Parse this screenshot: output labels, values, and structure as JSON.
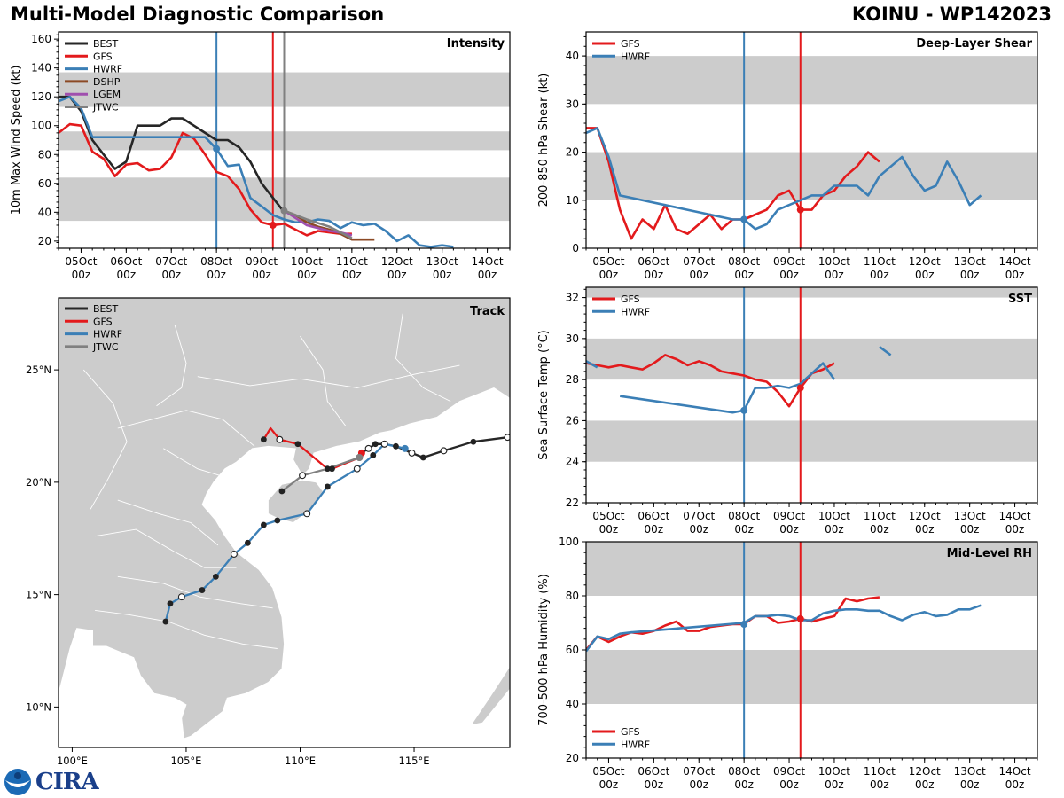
{
  "header": {
    "title": "Multi-Model Diagnostic Comparison",
    "storm": "KOINU - WP142023"
  },
  "colors": {
    "BEST": "#262626",
    "GFS": "#e31a1c",
    "HWRF": "#3b7fb6",
    "DSHP": "#8c4a25",
    "LGEM": "#a04fae",
    "JTWC": "#808080",
    "band": "#cccccc",
    "land": "#cccccc"
  },
  "time_axis": {
    "ticks": [
      {
        "day": 5,
        "label": "05Oct",
        "sub": "00z"
      },
      {
        "day": 6,
        "label": "06Oct",
        "sub": "00z"
      },
      {
        "day": 7,
        "label": "07Oct",
        "sub": "00z"
      },
      {
        "day": 8,
        "label": "08Oct",
        "sub": "00z"
      },
      {
        "day": 9,
        "label": "09Oct",
        "sub": "00z"
      },
      {
        "day": 10,
        "label": "10Oct",
        "sub": "00z"
      },
      {
        "day": 11,
        "label": "11Oct",
        "sub": "00z"
      },
      {
        "day": 12,
        "label": "12Oct",
        "sub": "00z"
      },
      {
        "day": 13,
        "label": "13Oct",
        "sub": "00z"
      },
      {
        "day": 14,
        "label": "14Oct",
        "sub": "00z"
      }
    ],
    "xlim": [
      4.5,
      14.5
    ],
    "vlines": [
      {
        "day": 8.0,
        "model": "HWRF"
      },
      {
        "day": 9.25,
        "model": "GFS"
      },
      {
        "day": 9.5,
        "model": "JTWC",
        "panels": [
          "intensity"
        ]
      }
    ]
  },
  "chart_data": [
    {
      "id": "intensity",
      "type": "line",
      "title": "Intensity",
      "ylabel": "10m Max Wind Speed (kt)",
      "ylim": [
        15,
        165
      ],
      "yticks": [
        20,
        40,
        60,
        80,
        100,
        120,
        140,
        160
      ],
      "bands": [
        [
          34,
          64
        ],
        [
          83,
          96
        ],
        [
          113,
          137
        ]
      ],
      "legend": [
        "BEST",
        "GFS",
        "HWRF",
        "DSHP",
        "LGEM",
        "JTWC"
      ],
      "legend_position": "top-left",
      "series": [
        {
          "name": "BEST",
          "x": [
            4.5,
            4.75,
            5.0,
            5.25,
            5.5,
            5.75,
            6.0,
            6.25,
            6.5,
            6.75,
            7.0,
            7.25,
            7.5,
            7.75,
            8.0,
            8.25,
            8.5,
            8.75,
            9.0,
            9.25,
            9.5
          ],
          "y": [
            120,
            120,
            110,
            90,
            80,
            70,
            75,
            100,
            100,
            100,
            105,
            105,
            100,
            95,
            90,
            90,
            85,
            75,
            60,
            50,
            40
          ]
        },
        {
          "name": "GFS",
          "x": [
            4.5,
            4.75,
            5.0,
            5.25,
            5.5,
            5.75,
            6.0,
            6.25,
            6.5,
            6.75,
            7.0,
            7.25,
            7.5,
            7.75,
            8.0,
            8.25,
            8.5,
            8.75,
            9.0,
            9.25,
            9.5,
            9.75,
            10.0,
            10.25,
            10.5,
            10.75,
            11.0
          ],
          "y": [
            95,
            101,
            100,
            82,
            77,
            65,
            73,
            74,
            69,
            70,
            78,
            95,
            91,
            80,
            68,
            65,
            56,
            42,
            33,
            31,
            32,
            28,
            24,
            27,
            26,
            25,
            25
          ]
        },
        {
          "name": "HWRF",
          "x": [
            4.5,
            4.75,
            5.0,
            5.25,
            5.5,
            6.0,
            6.5,
            7.0,
            7.5,
            7.75,
            8.0,
            8.25,
            8.5,
            8.75,
            9.0,
            9.25,
            9.5,
            9.75,
            10.0,
            10.25,
            10.5,
            10.75,
            11.0,
            11.25,
            11.5,
            11.75,
            12.0,
            12.25,
            12.5,
            12.75,
            13.0,
            13.25
          ],
          "y": [
            117,
            120,
            112,
            92,
            92,
            92,
            92,
            92,
            92,
            92,
            84,
            72,
            73,
            50,
            44,
            38,
            35,
            33,
            33,
            35,
            34,
            29,
            33,
            31,
            32,
            27,
            20,
            24,
            17,
            16,
            17,
            16
          ]
        },
        {
          "name": "DSHP",
          "x": [
            9.5,
            9.75,
            10.0,
            10.25,
            10.5,
            10.75,
            11.0,
            11.25,
            11.5
          ],
          "y": [
            41,
            38,
            33,
            30,
            28,
            25,
            21,
            21,
            21
          ]
        },
        {
          "name": "LGEM",
          "x": [
            9.5,
            9.75,
            10.0,
            10.25,
            10.5,
            10.75,
            11.0
          ],
          "y": [
            41,
            36,
            31,
            29,
            27,
            26,
            24
          ]
        },
        {
          "name": "JTWC",
          "x": [
            9.5,
            10.0,
            10.5,
            11.0
          ],
          "y": [
            41,
            35,
            30,
            22
          ]
        }
      ],
      "markers": [
        {
          "model": "HWRF",
          "x": 8.0,
          "y": 84
        },
        {
          "model": "GFS",
          "x": 9.25,
          "y": 31
        },
        {
          "model": "JTWC",
          "x": 9.5,
          "y": 41
        }
      ]
    },
    {
      "id": "shear",
      "type": "line",
      "title": "Deep-Layer Shear",
      "ylabel": "200-850 hPa Shear (kt)",
      "ylim": [
        0,
        45
      ],
      "yticks": [
        0,
        10,
        20,
        30,
        40
      ],
      "bands": [
        [
          10,
          20
        ],
        [
          30,
          40
        ]
      ],
      "legend": [
        "GFS",
        "HWRF"
      ],
      "legend_position": "top-left",
      "series": [
        {
          "name": "GFS",
          "x": [
            4.5,
            4.75,
            5.0,
            5.25,
            5.5,
            5.75,
            6.0,
            6.25,
            6.5,
            6.75,
            7.0,
            7.25,
            7.5,
            7.75,
            8.0,
            8.25,
            8.5,
            8.75,
            9.0,
            9.25,
            9.5,
            9.75,
            10.0,
            10.25,
            10.5,
            10.75,
            11.0
          ],
          "y": [
            25,
            25,
            18,
            8,
            2,
            6,
            4,
            9,
            4,
            3,
            5,
            7,
            4,
            6,
            6,
            7,
            8,
            11,
            12,
            8,
            8,
            11,
            12,
            15,
            17,
            20,
            18
          ]
        },
        {
          "name": "HWRF",
          "x": [
            4.5,
            4.75,
            5.0,
            5.25,
            7.75,
            8.0,
            8.25,
            8.5,
            8.75,
            9.0,
            9.25,
            9.5,
            9.75,
            10.0,
            10.25,
            10.5,
            10.75,
            11.0,
            11.25,
            11.5,
            11.75,
            12.0,
            12.25,
            12.5,
            12.75,
            13.0,
            13.25
          ],
          "y": [
            24,
            25,
            19,
            11,
            6,
            6,
            4,
            5,
            8,
            9,
            10,
            11,
            11,
            13,
            13,
            13,
            11,
            15,
            17,
            19,
            15,
            12,
            13,
            18,
            14,
            9,
            11
          ]
        }
      ],
      "markers": [
        {
          "model": "HWRF",
          "x": 8.0,
          "y": 6
        },
        {
          "model": "GFS",
          "x": 9.25,
          "y": 8
        }
      ]
    },
    {
      "id": "sst",
      "type": "line",
      "title": "SST",
      "ylabel": "Sea Surface Temp (°C)",
      "ylim": [
        22,
        32.5
      ],
      "yticks": [
        22,
        24,
        26,
        28,
        30,
        32
      ],
      "bands": [
        [
          24,
          26
        ],
        [
          28,
          30
        ],
        [
          32,
          33
        ]
      ],
      "legend": [
        "GFS",
        "HWRF"
      ],
      "legend_position": "top-left",
      "series": [
        {
          "name": "GFS",
          "x": [
            4.5,
            4.75,
            5.0,
            5.25,
            5.5,
            5.75,
            6.0,
            6.25,
            6.5,
            6.75,
            7.0,
            7.25,
            7.5,
            7.75,
            8.0,
            8.25,
            8.5,
            8.75,
            9.0,
            9.25,
            9.5,
            9.75,
            10.0
          ],
          "y": [
            28.8,
            28.7,
            28.6,
            28.7,
            28.6,
            28.5,
            28.8,
            29.2,
            29.0,
            28.7,
            28.9,
            28.7,
            28.4,
            28.3,
            28.2,
            28.0,
            27.9,
            27.4,
            26.7,
            27.6,
            28.3,
            28.5,
            28.8
          ]
        },
        {
          "name": "HWRF",
          "segments": [
            {
              "x": [
                4.5,
                4.75
              ],
              "y": [
                28.9,
                28.6
              ]
            },
            {
              "x": [
                5.25,
                7.75,
                8.0,
                8.25,
                8.5,
                8.75,
                9.0,
                9.25,
                9.5,
                9.75,
                10.0
              ],
              "y": [
                27.2,
                26.4,
                26.5,
                27.6,
                27.6,
                27.7,
                27.6,
                27.8,
                28.3,
                28.8,
                28.0
              ]
            },
            {
              "x": [
                11.0,
                11.25
              ],
              "y": [
                29.6,
                29.2
              ]
            }
          ]
        }
      ],
      "markers": [
        {
          "model": "HWRF",
          "x": 8.0,
          "y": 26.5
        },
        {
          "model": "GFS",
          "x": 9.25,
          "y": 27.6
        }
      ]
    },
    {
      "id": "rh",
      "type": "line",
      "title": "Mid-Level RH",
      "ylabel": "700-500 hPa Humidity (%)",
      "ylim": [
        20,
        100
      ],
      "yticks": [
        20,
        40,
        60,
        80,
        100
      ],
      "bands": [
        [
          40,
          60
        ],
        [
          80,
          100
        ]
      ],
      "legend": [
        "GFS",
        "HWRF"
      ],
      "legend_position": "bottom-left",
      "series": [
        {
          "name": "GFS",
          "x": [
            4.5,
            4.75,
            5.0,
            5.25,
            5.5,
            5.75,
            6.0,
            6.25,
            6.5,
            6.75,
            7.0,
            7.25,
            7.5,
            7.75,
            8.0,
            8.25,
            8.5,
            8.75,
            9.0,
            9.25,
            9.5,
            9.75,
            10.0,
            10.25,
            10.5,
            10.75,
            11.0
          ],
          "y": [
            60,
            65,
            63,
            65,
            66.5,
            66,
            67,
            69,
            70.5,
            67,
            67,
            68.5,
            69,
            69.5,
            69.5,
            72.5,
            72.5,
            70,
            70.5,
            71.5,
            70.5,
            71.5,
            72.5,
            79,
            78,
            79,
            79.5
          ]
        },
        {
          "name": "HWRF",
          "x": [
            4.5,
            4.75,
            5.0,
            5.25,
            5.5,
            8.0,
            8.25,
            8.5,
            8.75,
            9.0,
            9.25,
            9.5,
            9.75,
            10.0,
            10.25,
            10.5,
            10.75,
            11.0,
            11.25,
            11.5,
            11.75,
            12.0,
            12.25,
            12.5,
            12.75,
            13.0,
            13.25
          ],
          "y": [
            59.5,
            65,
            64,
            66,
            66.5,
            70,
            72.5,
            72.5,
            73,
            72.5,
            71,
            71,
            73.5,
            74.5,
            75,
            75,
            74.5,
            74.5,
            72.5,
            71,
            73,
            74,
            72.5,
            73,
            75,
            75,
            76.5
          ]
        }
      ],
      "markers": [
        {
          "model": "HWRF",
          "x": 8.0,
          "y": 69.5
        },
        {
          "model": "GFS",
          "x": 9.25,
          "y": 71.5
        }
      ]
    },
    {
      "id": "track",
      "type": "scatter",
      "title": "Track",
      "xlim": [
        99.4,
        119.2
      ],
      "ylim": [
        8.2,
        28.2
      ],
      "xticks": [
        {
          "v": 100,
          "label": "100°E"
        },
        {
          "v": 105,
          "label": "105°E"
        },
        {
          "v": 110,
          "label": "110°E"
        },
        {
          "v": 115,
          "label": "115°E"
        }
      ],
      "yticks": [
        {
          "v": 10,
          "label": "10°N"
        },
        {
          "v": 15,
          "label": "15°N"
        },
        {
          "v": 20,
          "label": "20°N"
        },
        {
          "v": 25,
          "label": "25°N"
        }
      ],
      "legend": [
        "BEST",
        "GFS",
        "HWRF",
        "JTWC"
      ],
      "legend_position": "top-left",
      "series": [
        {
          "name": "BEST",
          "lon": [
            119.1,
            117.6,
            116.3,
            115.4,
            114.9,
            114.2,
            113.7,
            113.3,
            113.0,
            112.7
          ],
          "lat": [
            22.0,
            21.8,
            21.4,
            21.1,
            21.3,
            21.6,
            21.7,
            21.7,
            21.5,
            21.3
          ],
          "open": [
            1,
            0,
            1,
            0,
            1,
            0,
            1,
            0,
            1,
            0
          ]
        },
        {
          "name": "GFS",
          "lon": [
            108.4,
            108.7,
            109.1,
            109.9,
            111.2,
            111.4,
            112.6,
            112.7
          ],
          "lat": [
            21.9,
            22.4,
            21.9,
            21.7,
            20.6,
            20.6,
            21.1,
            21.3
          ],
          "open": [
            0,
            0,
            1,
            0,
            0,
            0,
            1,
            0
          ]
        },
        {
          "name": "HWRF",
          "lon": [
            114.6,
            113.7,
            113.2,
            112.5,
            111.2,
            110.3,
            109.0,
            108.4,
            107.7,
            107.1,
            106.3,
            105.7,
            104.8,
            104.3,
            104.1
          ],
          "lat": [
            21.5,
            21.7,
            21.2,
            20.6,
            19.8,
            18.6,
            18.3,
            18.1,
            17.3,
            16.8,
            15.8,
            15.2,
            14.9,
            14.6,
            13.8
          ],
          "open": [
            0,
            1,
            0,
            1,
            0,
            1,
            0,
            0,
            0,
            1,
            0,
            0,
            1,
            0,
            0
          ]
        },
        {
          "name": "JTWC",
          "lon": [
            112.6,
            111.2,
            110.1,
            109.2
          ],
          "lat": [
            21.1,
            20.6,
            20.3,
            19.6
          ],
          "open": [
            0,
            0,
            1,
            0
          ]
        }
      ],
      "current": [
        {
          "model": "GFS",
          "lon": 112.7,
          "lat": 21.3
        },
        {
          "model": "HWRF",
          "lon": 114.6,
          "lat": 21.5
        },
        {
          "model": "JTWC",
          "lon": 112.6,
          "lat": 21.1
        }
      ]
    }
  ],
  "logo": {
    "text": "CIRA"
  }
}
